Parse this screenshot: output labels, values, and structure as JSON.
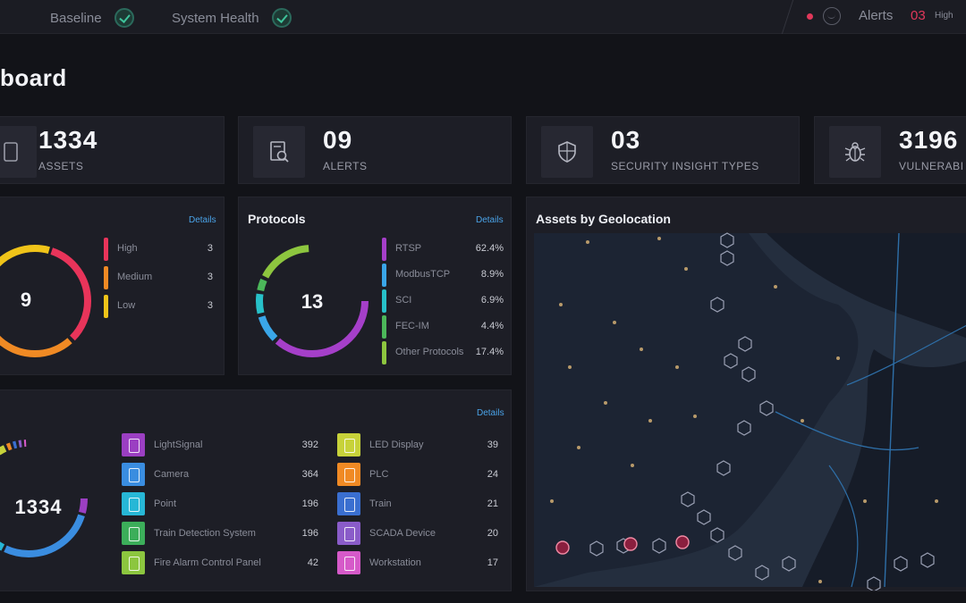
{
  "topbar": {
    "items": [
      {
        "label": "Baseline",
        "icon": "check-icon"
      },
      {
        "label": "System Health",
        "icon": "check-icon"
      }
    ],
    "alerts": {
      "label": "Alerts",
      "count": "03",
      "severity": "High"
    }
  },
  "page": {
    "title": "board"
  },
  "stats": [
    {
      "value": "1334",
      "label": "ASSETS",
      "icon": "assets-icon"
    },
    {
      "value": "09",
      "label": "ALERTS",
      "icon": "alert-document-icon"
    },
    {
      "value": "03",
      "label": "SECURITY INSIGHT TYPES",
      "icon": "shield-icon"
    },
    {
      "value": "3196",
      "label": "VULNERABI",
      "icon": "bug-icon"
    }
  ],
  "alerts_panel": {
    "details": "Details",
    "total": "9",
    "rows": [
      {
        "name": "High",
        "value": "3",
        "color": "#e8345a"
      },
      {
        "name": "Medium",
        "value": "3",
        "color": "#f08a24"
      },
      {
        "name": "Low",
        "value": "3",
        "color": "#f0c419"
      }
    ]
  },
  "protocols_panel": {
    "title": "Protocols",
    "details": "Details",
    "total": "13",
    "rows": [
      {
        "name": "RTSP",
        "value": "62.4%",
        "pct": 62.4,
        "color": "#a53fc9"
      },
      {
        "name": "ModbusTCP",
        "value": "8.9%",
        "pct": 8.9,
        "color": "#3aa6e8"
      },
      {
        "name": "SCI",
        "value": "6.9%",
        "pct": 6.9,
        "color": "#27c1c9"
      },
      {
        "name": "FEC-IM",
        "value": "4.4%",
        "pct": 4.4,
        "color": "#4cb85a"
      },
      {
        "name": "Other Protocols",
        "value": "17.4%",
        "pct": 17.4,
        "color": "#8dc63f"
      }
    ]
  },
  "assets_panel": {
    "details": "Details",
    "total": "1334",
    "left": [
      {
        "name": "LightSignal",
        "value": "392",
        "color": "#9b3fc2"
      },
      {
        "name": "Camera",
        "value": "364",
        "color": "#3a8de0"
      },
      {
        "name": "Point",
        "value": "196",
        "color": "#27b7d6"
      },
      {
        "name": "Train Detection System",
        "value": "196",
        "color": "#3cae5a"
      },
      {
        "name": "Fire Alarm Control Panel",
        "value": "42",
        "color": "#8cc63f"
      }
    ],
    "right": [
      {
        "name": "LED Display",
        "value": "39",
        "color": "#c7d23a"
      },
      {
        "name": "PLC",
        "value": "24",
        "color": "#f08a24"
      },
      {
        "name": "Train",
        "value": "21",
        "color": "#3a6fd0"
      },
      {
        "name": "SCADA Device",
        "value": "20",
        "color": "#8a5cc9"
      },
      {
        "name": "Workstation",
        "value": "17",
        "color": "#d65ac9"
      }
    ]
  },
  "geo_panel": {
    "title": "Assets by Geolocation"
  }
}
